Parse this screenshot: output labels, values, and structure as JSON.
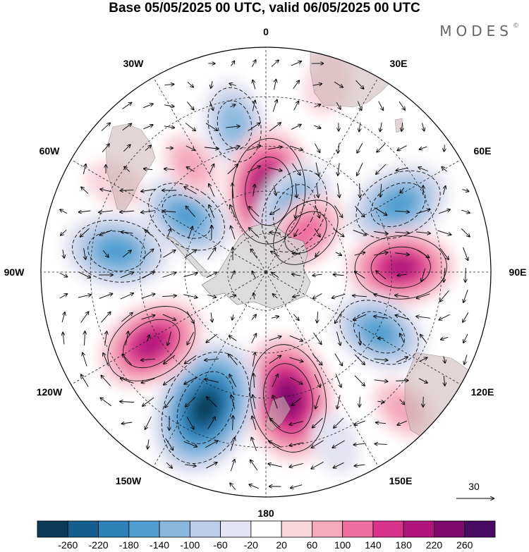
{
  "title": "Base 05/05/2025 00 UTC, valid 06/05/2025 00 UTC",
  "brand": "MODES",
  "brand_mark": "©",
  "longitude_labels": [
    "0",
    "30E",
    "60E",
    "90E",
    "120E",
    "150E",
    "180",
    "150W",
    "120W",
    "90W",
    "60W",
    "30W"
  ],
  "vector_reference": {
    "label": "30"
  },
  "colorbar": {
    "tick_labels": [
      "-260",
      "-220",
      "-180",
      "-140",
      "-100",
      "-60",
      "-20",
      "20",
      "60",
      "100",
      "140",
      "180",
      "220",
      "260"
    ],
    "colors": [
      "#0b3a57",
      "#155f8c",
      "#2c81b8",
      "#4f9fd0",
      "#88b8de",
      "#bccde8",
      "#e4e3f1",
      "#ffffff",
      "#f9d6dc",
      "#f4a9bd",
      "#ee6fa0",
      "#d9348b",
      "#b3137c",
      "#7d0a6c",
      "#4a0c63"
    ]
  },
  "map": {
    "projection": "south-polar-stereographic",
    "land_color": "#bcbcbc",
    "grid_style": "dashed",
    "anomaly_cells": [
      {
        "lon": -12,
        "r": 0.67,
        "value": -120
      },
      {
        "lon": 2,
        "r": 0.36,
        "value": 230
      },
      {
        "lon": 25,
        "r": 0.3,
        "value": -160
      },
      {
        "lon": 45,
        "r": 0.25,
        "value": 120
      },
      {
        "lon": 63,
        "r": 0.66,
        "value": -170
      },
      {
        "lon": 88,
        "r": 0.6,
        "value": 180
      },
      {
        "lon": 118,
        "r": 0.57,
        "value": -150
      },
      {
        "lon": 170,
        "r": 0.57,
        "value": 240
      },
      {
        "lon": -156,
        "r": 0.66,
        "value": -270
      },
      {
        "lon": -122,
        "r": 0.6,
        "value": 190
      },
      {
        "lon": -82,
        "r": 0.67,
        "value": -170
      },
      {
        "lon": -55,
        "r": 0.43,
        "value": -150
      },
      {
        "lon": -35,
        "r": 0.58,
        "value": 60
      },
      {
        "lon": 18,
        "r": 0.88,
        "value": 40
      },
      {
        "lon": 135,
        "r": 0.86,
        "value": 60
      },
      {
        "lon": -60,
        "r": 0.78,
        "value": 30
      },
      {
        "lon": 158,
        "r": 0.82,
        "value": -40
      }
    ]
  }
}
